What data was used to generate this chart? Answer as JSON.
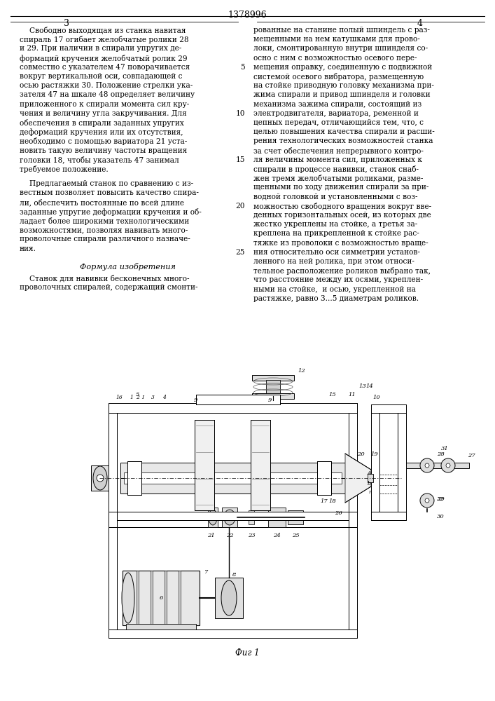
{
  "page_number_center": "1378996",
  "page_number_left": "3",
  "page_number_right": "4",
  "background_color": "#ffffff",
  "text_color": "#000000",
  "fig_caption": "Фиг 1",
  "formula_title": "Формула изобретения",
  "left_col_lines": [
    "Свободно выходящая из станка навитая",
    "спираль 17 огибает желобчатые ролики 28",
    "и 29. При наличии в спирали упругих де-",
    "формаций кручения желобчатый ролик 29",
    "совместно с указателем 47 поворачивается",
    "вокруг вертикальной оси, совпадающей с",
    "осью растяжки 30. Положение стрелки ука-",
    "зателя 47 на шкале 48 определяет величину",
    "приложенного к спирали момента сил кру-",
    "чения и величину угла закручивания. Для",
    "обеспечения в спирали заданных упругих",
    "деформаций кручения или их отсутствия,",
    "необходимо с помощью вариатора 21 уста-",
    "новить такую величину частоты вращения",
    "головки 18, чтобы указатель 47 занимал",
    "требуемое положение."
  ],
  "left_col_para2_lines": [
    "Предлагаемый станок по сравнению с из-",
    "вестным позволяет повысить качество спира-",
    "ли, обеспечить постоянные по всей длине",
    "заданные упругие деформации кручения и об-",
    "ладает более широкими технологическими",
    "возможностями, позволяя навивать много-",
    "проволочные спирали различного назначе-",
    "ния."
  ],
  "formula_lines": [
    "Станок для навивки бесконечных много-",
    "проволочных спиралей, содержащий смонти-"
  ],
  "right_col_lines": [
    "рованные на станине полый шпиндель с раз-",
    "мещенными на нем катушками для прово-",
    "локи, смонтированную внутри шпинделя со-",
    "осно с ним с возможностью осевого пере-",
    "мещения оправку, соединенную с подвижной",
    "системой осевого вибратора, размещенную",
    "на стойке приводную головку механизма при-",
    "жима спирали и привод шпинделя и головки",
    "механизма зажима спирали, состоящий из",
    "электродвигателя, вариатора, ременной и",
    "цепных передач, отличающийся тем, что, с",
    "целью повышения качества спирали и расши-",
    "рения технологических возможностей станка",
    "за счет обеспечения непрерывного контро-",
    "ля величины момента сил, приложенных к",
    "спирали в процессе навивки, станок снаб-",
    "жен тремя желобчатыми роликами, разме-",
    "щенными по ходу движения спирали за при-",
    "водной головкой и установленными с воз-",
    "можностью свободного вращения вокруг вве-",
    "денных горизонтальных осей, из которых две",
    "жестко укреплены на стойке, а третья за-",
    "креплена на прикрепленной к стойке рас-",
    "тяжке из проволоки с возможностью враще-",
    "ния относительно оси симметрии установ-",
    "ленного на ней ролика, при этом относи-",
    "тельное расположение роликов выбрано так,",
    "что расстояние между их осями, укреплен-",
    "ными на стойке,  и осью, укрепленной на",
    "растяжке, равно 3...5 диаметрам роликов."
  ],
  "line_numbers": [
    5,
    10,
    15,
    20,
    25
  ],
  "hatch_color": "#888888",
  "draw_color": "#000000"
}
